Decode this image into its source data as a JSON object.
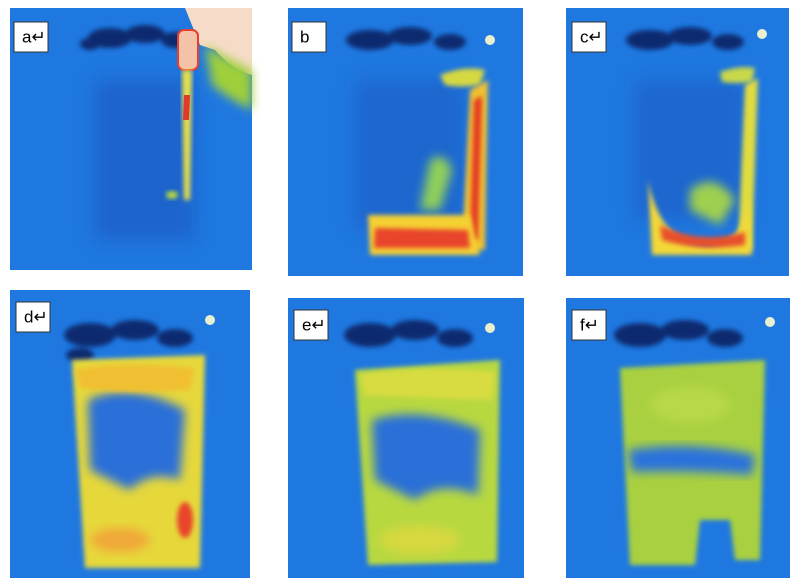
{
  "panels": [
    {
      "label": "a↵"
    },
    {
      "label": "b"
    },
    {
      "label": "c↵"
    },
    {
      "label": "d↵"
    },
    {
      "label": "e↵"
    },
    {
      "label": "f↵"
    }
  ]
}
